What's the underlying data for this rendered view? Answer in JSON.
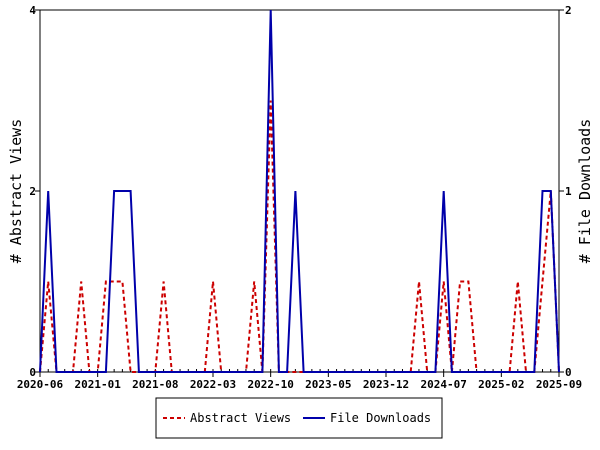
{
  "chart_data": {
    "type": "line",
    "title": "",
    "xlabel": "",
    "ylabel_left": "# Abstract Views",
    "ylabel_right": "# File Downloads",
    "x_ticks": [
      "2020-06",
      "2021-01",
      "2021-08",
      "2022-03",
      "2022-10",
      "2023-05",
      "2023-12",
      "2024-07",
      "2025-02",
      "2025-09"
    ],
    "y_left_ticks": [
      "0",
      "2",
      "4"
    ],
    "y_right_ticks": [
      "0",
      "1",
      "2"
    ],
    "ylim_left": [
      0,
      4
    ],
    "ylim_right": [
      0,
      2
    ],
    "grid": false,
    "legend_position": "bottom",
    "series": [
      {
        "name": "Abstract Views",
        "axis": "left",
        "color": "#cc0000",
        "style": "dashed",
        "x": [
          "2020-06",
          "2020-07",
          "2020-08",
          "2020-09",
          "2020-10",
          "2020-11",
          "2020-12",
          "2021-01",
          "2021-02",
          "2021-03",
          "2021-04",
          "2021-05",
          "2021-06",
          "2021-07",
          "2021-08",
          "2021-09",
          "2021-10",
          "2021-11",
          "2021-12",
          "2022-01",
          "2022-02",
          "2022-03",
          "2022-04",
          "2022-05",
          "2022-06",
          "2022-07",
          "2022-08",
          "2022-09",
          "2022-10",
          "2022-11",
          "2022-12",
          "2023-01",
          "2023-02",
          "2023-03",
          "2023-04",
          "2023-05",
          "2023-06",
          "2023-07",
          "2023-08",
          "2023-09",
          "2023-10",
          "2023-11",
          "2023-12",
          "2024-01",
          "2024-02",
          "2024-03",
          "2024-04",
          "2024-05",
          "2024-06",
          "2024-07",
          "2024-08",
          "2024-09",
          "2024-10",
          "2024-11",
          "2024-12",
          "2025-01",
          "2025-02",
          "2025-03",
          "2025-04",
          "2025-05",
          "2025-06",
          "2025-07",
          "2025-08",
          "2025-09"
        ],
        "values": [
          0,
          1,
          0,
          0,
          0,
          1,
          0,
          0,
          1,
          1,
          1,
          0,
          0,
          0,
          0,
          1,
          0,
          0,
          0,
          0,
          0,
          1,
          0,
          0,
          0,
          0,
          1,
          0,
          3,
          0,
          0,
          0,
          0,
          0,
          0,
          0,
          0,
          0,
          0,
          0,
          0,
          0,
          0,
          0,
          0,
          0,
          1,
          0,
          0,
          1,
          0,
          1,
          1,
          0,
          0,
          0,
          0,
          0,
          1,
          0,
          0,
          1,
          2,
          0
        ]
      },
      {
        "name": "File Downloads",
        "axis": "right",
        "color": "#0000aa",
        "style": "solid",
        "x": [
          "2020-06",
          "2020-07",
          "2020-08",
          "2020-09",
          "2020-10",
          "2020-11",
          "2020-12",
          "2021-01",
          "2021-02",
          "2021-03",
          "2021-04",
          "2021-05",
          "2021-06",
          "2021-07",
          "2021-08",
          "2021-09",
          "2021-10",
          "2021-11",
          "2021-12",
          "2022-01",
          "2022-02",
          "2022-03",
          "2022-04",
          "2022-05",
          "2022-06",
          "2022-07",
          "2022-08",
          "2022-09",
          "2022-10",
          "2022-11",
          "2022-12",
          "2023-01",
          "2023-02",
          "2023-03",
          "2023-04",
          "2023-05",
          "2023-06",
          "2023-07",
          "2023-08",
          "2023-09",
          "2023-10",
          "2023-11",
          "2023-12",
          "2024-01",
          "2024-02",
          "2024-03",
          "2024-04",
          "2024-05",
          "2024-06",
          "2024-07",
          "2024-08",
          "2024-09",
          "2024-10",
          "2024-11",
          "2024-12",
          "2025-01",
          "2025-02",
          "2025-03",
          "2025-04",
          "2025-05",
          "2025-06",
          "2025-07",
          "2025-08",
          "2025-09"
        ],
        "values": [
          0,
          1,
          0,
          0,
          0,
          0,
          0,
          0,
          0,
          1,
          1,
          1,
          0,
          0,
          0,
          0,
          0,
          0,
          0,
          0,
          0,
          0,
          0,
          0,
          0,
          0,
          0,
          0,
          2,
          0,
          0,
          1,
          0,
          0,
          0,
          0,
          0,
          0,
          0,
          0,
          0,
          0,
          0,
          0,
          0,
          0,
          0,
          0,
          0,
          1,
          0,
          0,
          0,
          0,
          0,
          0,
          0,
          0,
          0,
          0,
          0,
          1,
          1,
          0
        ]
      }
    ]
  }
}
